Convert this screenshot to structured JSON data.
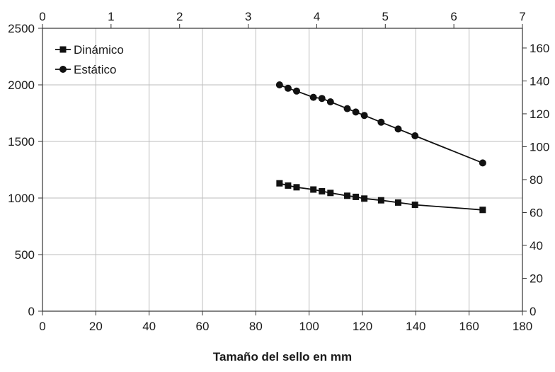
{
  "chart_data": {
    "type": "line",
    "title": "",
    "xlabel": "Tamaño del sello en mm",
    "ylabel": "",
    "xlim": [
      0,
      180
    ],
    "ylim": [
      0,
      2500
    ],
    "x_ticks": [
      0,
      20,
      40,
      60,
      80,
      100,
      120,
      140,
      160,
      180
    ],
    "y_ticks": [
      0,
      500,
      1000,
      1500,
      2000,
      2500
    ],
    "secondary_x": {
      "lim": [
        0,
        7
      ],
      "ticks": [
        0,
        1,
        2,
        3,
        4,
        5,
        6,
        7
      ]
    },
    "secondary_y": {
      "lim": [
        0,
        172
      ],
      "ticks": [
        0,
        20,
        40,
        60,
        80,
        100,
        120,
        140,
        160
      ]
    },
    "grid": true,
    "legend_position": "top-left",
    "series": [
      {
        "name": "Dinámico",
        "marker": "square",
        "x": [
          88.9,
          92.1,
          95.3,
          101.6,
          104.8,
          108.0,
          114.3,
          117.5,
          120.7,
          127.0,
          133.4,
          139.7,
          165.1
        ],
        "y": [
          1130,
          1110,
          1095,
          1075,
          1060,
          1045,
          1020,
          1010,
          995,
          980,
          960,
          940,
          895
        ]
      },
      {
        "name": "Estático",
        "marker": "circle",
        "x": [
          88.9,
          92.1,
          95.3,
          101.6,
          104.8,
          108.0,
          114.3,
          117.5,
          120.7,
          127.0,
          133.4,
          139.7,
          165.1
        ],
        "y": [
          2000,
          1970,
          1945,
          1890,
          1880,
          1850,
          1790,
          1760,
          1730,
          1670,
          1610,
          1550,
          1310
        ]
      }
    ]
  }
}
